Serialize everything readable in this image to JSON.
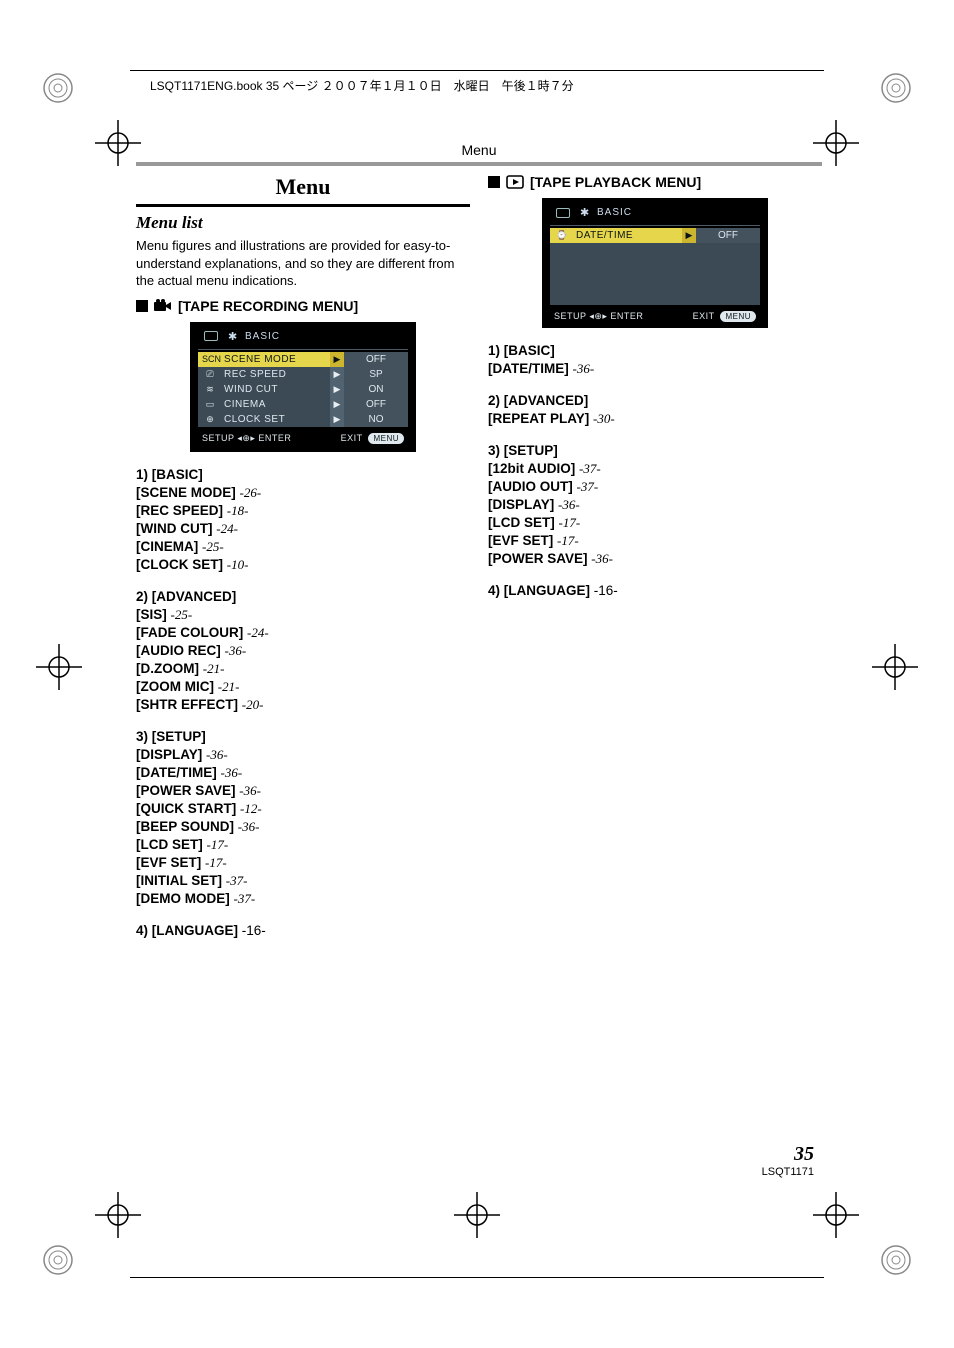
{
  "header_line": "LSQT1171ENG.book  35 ページ  ２００７年１月１０日　水曜日　午後１時７分",
  "section_header": "Menu",
  "page_number": "35",
  "doc_code": "LSQT1171",
  "main_title": "Menu",
  "subtitle": "Menu list",
  "intro_text": "Menu figures and illustrations are provided for easy-to-understand explanations, and so they are different from the actual menu indications.",
  "recording": {
    "heading": "[TAPE RECORDING MENU]",
    "lcd": {
      "top_label": "BASIC",
      "rows": [
        {
          "icon": "SCN",
          "label": "SCENE MODE",
          "value": "OFF",
          "hl": true
        },
        {
          "icon": "⎚",
          "label": "REC SPEED",
          "value": "SP",
          "hl": false
        },
        {
          "icon": "≋",
          "label": "WIND CUT",
          "value": "ON",
          "hl": false
        },
        {
          "icon": "▭",
          "label": "CINEMA",
          "value": "OFF",
          "hl": false
        },
        {
          "icon": "⊕",
          "label": "CLOCK SET",
          "value": "NO",
          "hl": false
        }
      ],
      "footer_left": "SETUP ◂⊕▸ ENTER",
      "footer_right": "EXIT",
      "footer_pill": "MENU"
    },
    "groups": [
      {
        "head": "1)   [BASIC]",
        "items": [
          {
            "b": "[SCENE MODE]",
            "pg": "-26-"
          },
          {
            "b": "[REC SPEED]",
            "pg": "-18-"
          },
          {
            "b": "[WIND CUT]",
            "pg": "-24-"
          },
          {
            "b": "[CINEMA]",
            "pg": "-25-"
          },
          {
            "b": "[CLOCK SET]",
            "pg": "-10-"
          }
        ]
      },
      {
        "head": "2)   [ADVANCED]",
        "items": [
          {
            "b": "[SIS]",
            "pg": "-25-"
          },
          {
            "b": "[FADE COLOUR]",
            "pg": "-24-"
          },
          {
            "b": "[AUDIO REC]",
            "pg": "-36-"
          },
          {
            "b": "[D.ZOOM]",
            "pg": "-21-"
          },
          {
            "b": "[ZOOM MIC]",
            "pg": "-21-"
          },
          {
            "b": "[SHTR EFFECT]",
            "pg": "-20-"
          }
        ]
      },
      {
        "head": "3)   [SETUP]",
        "items": [
          {
            "b": "[DISPLAY]",
            "pg": "-36-"
          },
          {
            "b": "[DATE/TIME]",
            "pg": "-36-"
          },
          {
            "b": "[POWER SAVE]",
            "pg": "-36-"
          },
          {
            "b": "[QUICK START]",
            "pg": "-12-"
          },
          {
            "b": "[BEEP SOUND]",
            "pg": "-36-"
          },
          {
            "b": "[LCD SET]",
            "pg": "-17-"
          },
          {
            "b": "[EVF SET]",
            "pg": "-17-"
          },
          {
            "b": "[INITIAL SET]",
            "pg": "-37-"
          },
          {
            "b": "[DEMO MODE]",
            "pg": "-37-"
          }
        ]
      },
      {
        "head": "4)   [LANGUAGE]",
        "pg": "-16-",
        "items": []
      }
    ]
  },
  "playback": {
    "heading": "[TAPE PLAYBACK MENU]",
    "lcd": {
      "top_label": "BASIC",
      "rows": [
        {
          "icon": "⌚",
          "label": "DATE/TIME",
          "value": "OFF",
          "hl": true
        }
      ],
      "footer_left": "SETUP ◂⊕▸ ENTER",
      "footer_right": "EXIT",
      "footer_pill": "MENU"
    },
    "groups": [
      {
        "head": "1)   [BASIC]",
        "items": [
          {
            "b": "[DATE/TIME]",
            "pg": "-36-"
          }
        ]
      },
      {
        "head": "2)   [ADVANCED]",
        "items": [
          {
            "b": "[REPEAT PLAY]",
            "pg": "-30-"
          }
        ]
      },
      {
        "head": "3)   [SETUP]",
        "items": [
          {
            "b": "[12bit AUDIO]",
            "pg": "-37-"
          },
          {
            "b": "[AUDIO OUT]",
            "pg": "-37-"
          },
          {
            "b": "[DISPLAY]",
            "pg": "-36-"
          },
          {
            "b": "[LCD SET]",
            "pg": "-17-"
          },
          {
            "b": "[EVF SET]",
            "pg": "-17-"
          },
          {
            "b": "[POWER SAVE]",
            "pg": "-36-"
          }
        ]
      },
      {
        "head": "4)   [LANGUAGE]",
        "pg": "-16-",
        "items": []
      }
    ]
  }
}
